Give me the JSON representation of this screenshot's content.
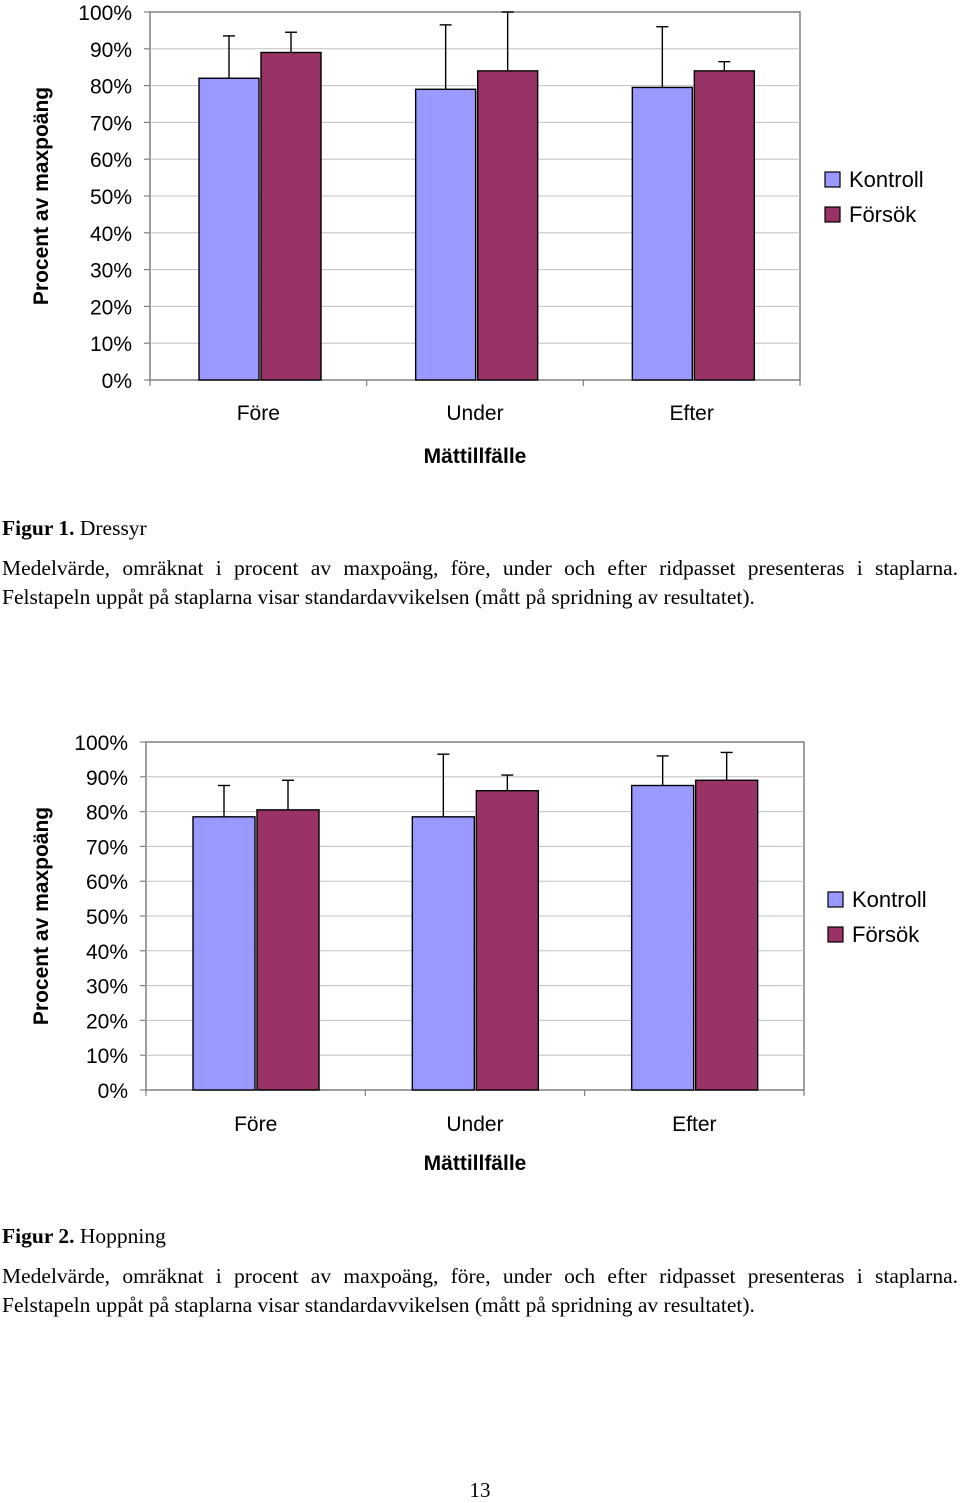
{
  "charts": [
    {
      "caption": {
        "label": "Figur 1.",
        "title": "Dressyr",
        "text": "Medelvärde, omräknat i procent av maxpoäng, före, under och efter ridpasset presenteras i staplarna. Felstapeln uppåt på staplarna visar standardavvikelsen (mått på spridning av resultatet)."
      }
    },
    {
      "caption": {
        "label": "Figur 2.",
        "title": "Hoppning",
        "text": "Medelvärde, omräknat i procent av maxpoäng, före, under och efter ridpasset presenteras i staplarna. Felstapeln uppåt på staplarna visar standardavvikelsen (mått på spridning av resultatet)."
      }
    }
  ],
  "colors": {
    "kontroll": "#9999FF",
    "forsok": "#993366"
  },
  "page_number": "13",
  "chart_data": [
    {
      "type": "bar",
      "xlabel": "Mättillfälle",
      "ylabel": "Procent av maxpoäng",
      "ylim": [
        0,
        100
      ],
      "yticks": [
        "0%",
        "10%",
        "20%",
        "30%",
        "40%",
        "50%",
        "60%",
        "70%",
        "80%",
        "90%",
        "100%"
      ],
      "categories": [
        "Före",
        "Under",
        "Efter"
      ],
      "legend_position": "right",
      "series": [
        {
          "name": "Kontroll",
          "values": [
            82,
            79,
            79.5
          ],
          "error_up": [
            11.5,
            17.5,
            16.5
          ]
        },
        {
          "name": "Försök",
          "values": [
            89,
            84,
            84
          ],
          "error_up": [
            5.5,
            16,
            2.5
          ]
        }
      ]
    },
    {
      "type": "bar",
      "xlabel": "Mättillfälle",
      "ylabel": "Procent av maxpoäng",
      "ylim": [
        0,
        100
      ],
      "yticks": [
        "0%",
        "10%",
        "20%",
        "30%",
        "40%",
        "50%",
        "60%",
        "70%",
        "80%",
        "90%",
        "100%"
      ],
      "categories": [
        "Före",
        "Under",
        "Efter"
      ],
      "legend_position": "right",
      "series": [
        {
          "name": "Kontroll",
          "values": [
            78.5,
            78.5,
            87.5
          ],
          "error_up": [
            9,
            18,
            8.5
          ]
        },
        {
          "name": "Försök",
          "values": [
            80.5,
            86,
            89
          ],
          "error_up": [
            8.5,
            4.5,
            8
          ]
        }
      ]
    }
  ]
}
